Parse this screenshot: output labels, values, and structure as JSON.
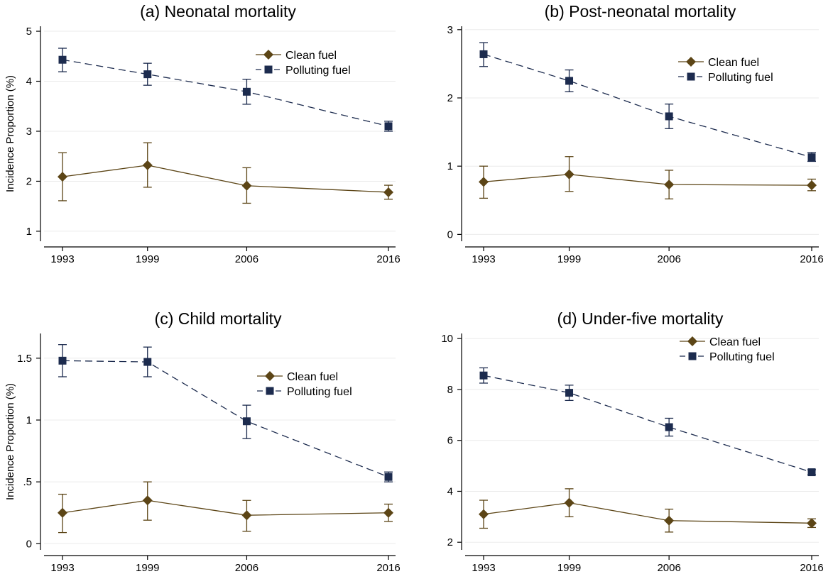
{
  "figure": {
    "colors": {
      "clean": "#5c4516",
      "polluting": "#1c2b4e",
      "grid": "#ebebeb",
      "axis": "#000000"
    },
    "legend": {
      "clean": "Clean fuel",
      "polluting": "Polluting fuel"
    }
  },
  "chart_data": [
    {
      "type": "line",
      "title": "(a) Neonatal mortality",
      "xlabel": "",
      "ylabel": "Incidence Proportion (%)",
      "x": [
        "1993",
        "1999",
        "2006",
        "2016"
      ],
      "ylim": [
        0.8,
        5.1
      ],
      "yticks": [
        1,
        2,
        3,
        4,
        5
      ],
      "ytick_labels": [
        "1",
        "2",
        "3",
        "4",
        "5"
      ],
      "grid": true,
      "legend_position": "top-right",
      "series": [
        {
          "name": "Clean fuel",
          "key": "clean",
          "values": [
            2.09,
            2.32,
            1.91,
            1.78
          ],
          "ci_low": [
            1.61,
            1.88,
            1.56,
            1.64
          ],
          "ci_high": [
            2.57,
            2.77,
            2.27,
            1.92
          ]
        },
        {
          "name": "Polluting fuel",
          "key": "polluting",
          "values": [
            4.43,
            4.14,
            3.79,
            3.1
          ],
          "ci_low": [
            4.19,
            3.92,
            3.54,
            3.0
          ],
          "ci_high": [
            4.66,
            4.36,
            4.04,
            3.2
          ]
        }
      ]
    },
    {
      "type": "line",
      "title": "(b) Post-neonatal mortality",
      "xlabel": "",
      "ylabel": "",
      "x": [
        "1993",
        "1999",
        "2006",
        "2016"
      ],
      "ylim": [
        -0.1,
        3.05
      ],
      "yticks": [
        0,
        1,
        2,
        3
      ],
      "ytick_labels": [
        "0",
        "1",
        "2",
        "3"
      ],
      "grid": true,
      "legend_position": "top-right",
      "series": [
        {
          "name": "Clean fuel",
          "key": "clean",
          "values": [
            0.77,
            0.88,
            0.73,
            0.72
          ],
          "ci_low": [
            0.53,
            0.63,
            0.52,
            0.64
          ],
          "ci_high": [
            1.0,
            1.14,
            0.94,
            0.81
          ]
        },
        {
          "name": "Polluting fuel",
          "key": "polluting",
          "values": [
            2.64,
            2.25,
            1.73,
            1.13
          ],
          "ci_low": [
            2.46,
            2.09,
            1.55,
            1.07
          ],
          "ci_high": [
            2.81,
            2.41,
            1.91,
            1.2
          ]
        }
      ]
    },
    {
      "type": "line",
      "title": "(c) Child mortality",
      "xlabel": "",
      "ylabel": "Incidence Proportion (%)",
      "x": [
        "1993",
        "1999",
        "2006",
        "2016"
      ],
      "ylim": [
        -0.05,
        1.7
      ],
      "yticks": [
        0,
        0.5,
        1,
        1.5
      ],
      "ytick_labels": [
        "0",
        ".5",
        "1",
        "1.5"
      ],
      "grid": true,
      "legend_position": "right",
      "series": [
        {
          "name": "Clean fuel",
          "key": "clean",
          "values": [
            0.25,
            0.35,
            0.23,
            0.25
          ],
          "ci_low": [
            0.09,
            0.19,
            0.1,
            0.18
          ],
          "ci_high": [
            0.4,
            0.5,
            0.35,
            0.32
          ]
        },
        {
          "name": "Polluting fuel",
          "key": "polluting",
          "values": [
            1.48,
            1.47,
            0.99,
            0.54
          ],
          "ci_low": [
            1.35,
            1.35,
            0.85,
            0.5
          ],
          "ci_high": [
            1.61,
            1.59,
            1.12,
            0.58
          ]
        }
      ]
    },
    {
      "type": "line",
      "title": "(d) Under-five mortality",
      "xlabel": "",
      "ylabel": "",
      "x": [
        "1993",
        "1999",
        "2006",
        "2016"
      ],
      "ylim": [
        1.7,
        10.2
      ],
      "yticks": [
        2,
        4,
        6,
        8,
        10
      ],
      "ytick_labels": [
        "2",
        "4",
        "6",
        "8",
        "10"
      ],
      "grid": true,
      "legend_position": "top-right",
      "series": [
        {
          "name": "Clean fuel",
          "key": "clean",
          "values": [
            3.1,
            3.55,
            2.85,
            2.75
          ],
          "ci_low": [
            2.55,
            3.0,
            2.4,
            2.58
          ],
          "ci_high": [
            3.65,
            4.1,
            3.3,
            2.92
          ]
        },
        {
          "name": "Polluting fuel",
          "key": "polluting",
          "values": [
            8.55,
            7.87,
            6.52,
            4.75
          ],
          "ci_low": [
            8.25,
            7.57,
            6.17,
            4.65
          ],
          "ci_high": [
            8.85,
            8.17,
            6.87,
            4.85
          ]
        }
      ]
    }
  ]
}
